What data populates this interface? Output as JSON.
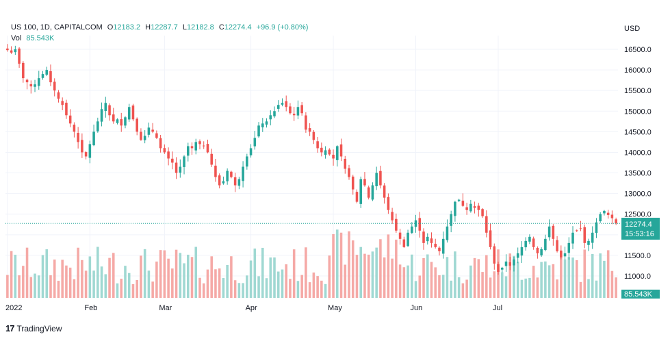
{
  "header": {
    "symbol": "US 100, 1D, CAPITALCOM",
    "o_label": "O",
    "o_val": "12183.2",
    "h_label": "H",
    "h_val": "12287.7",
    "l_label": "L",
    "l_val": "12182.8",
    "c_label": "C",
    "c_val": "12274.4",
    "change": "+96.9 (+0.80%)",
    "vol_label": "Vol",
    "vol_val": "85.543K"
  },
  "currency": "USD",
  "price_badge": {
    "price": "12274.4",
    "countdown": "15:53:16"
  },
  "vol_badge": "85.543K",
  "footer": {
    "brand": "TradingView",
    "logo": "tv-logo"
  },
  "colors": {
    "up": "#26a69a",
    "down": "#ef5350",
    "vol_up": "#9fd8d2",
    "vol_down": "#f5a9a6"
  },
  "chart_data": {
    "type": "candlestick",
    "ylim": [
      10700,
      16800
    ],
    "yticks": [
      "16500.0",
      "16000.0",
      "15500.0",
      "15000.0",
      "14500.0",
      "14000.0",
      "13500.0",
      "13000.0",
      "12500.0",
      "12000.0",
      "11500.0",
      "11000.0"
    ],
    "ytick_values": [
      16500,
      16000,
      15500,
      15000,
      14500,
      14000,
      13500,
      13000,
      12500,
      12000,
      11500,
      11000
    ],
    "xlabels": [
      "2022",
      "Feb",
      "Mar",
      "Apr",
      "May",
      "Jun",
      "Jul"
    ],
    "xlabel_index": [
      0,
      21,
      40,
      62,
      83,
      104,
      125
    ],
    "current_price": 12274.4,
    "close": [
      16480,
      16420,
      16500,
      16150,
      15800,
      15700,
      15600,
      15650,
      15800,
      15900,
      16000,
      15700,
      15500,
      15300,
      15150,
      14900,
      14700,
      14500,
      14250,
      14000,
      13900,
      14200,
      14500,
      14750,
      15050,
      15200,
      14900,
      14750,
      14800,
      14650,
      14850,
      15100,
      14800,
      14500,
      14300,
      14400,
      14600,
      14500,
      14350,
      14100,
      14000,
      13850,
      13750,
      13500,
      13650,
      13900,
      14150,
      14100,
      14250,
      14200,
      14150,
      14000,
      13700,
      13400,
      13200,
      13300,
      13550,
      13400,
      13200,
      13350,
      13650,
      13900,
      14100,
      14350,
      14650,
      14700,
      14750,
      14900,
      15000,
      15150,
      15200,
      15100,
      14950,
      14900,
      15100,
      14950,
      14550,
      14500,
      14300,
      14100,
      14000,
      14050,
      13950,
      13850,
      14150,
      13900,
      13600,
      13400,
      13100,
      12800,
      13350,
      13200,
      12900,
      13200,
      13500,
      13200,
      12900,
      12600,
      12350,
      12100,
      11900,
      11700,
      12050,
      12200,
      12350,
      12100,
      11800,
      11950,
      11800,
      11700,
      11600,
      11900,
      12200,
      12500,
      12800,
      12850,
      12700,
      12600,
      12750,
      12650,
      12600,
      12450,
      12050,
      11700,
      11300,
      11100,
      11200,
      11350,
      11250,
      11400,
      11550,
      11700,
      11850,
      11950,
      11700,
      11550,
      11650,
      11900,
      12200,
      11900,
      11600,
      11450,
      11550,
      11800,
      12050,
      12100,
      12150,
      11800,
      11850,
      12050,
      12300,
      12500,
      12580,
      12480,
      12400,
      12274
    ]
  }
}
